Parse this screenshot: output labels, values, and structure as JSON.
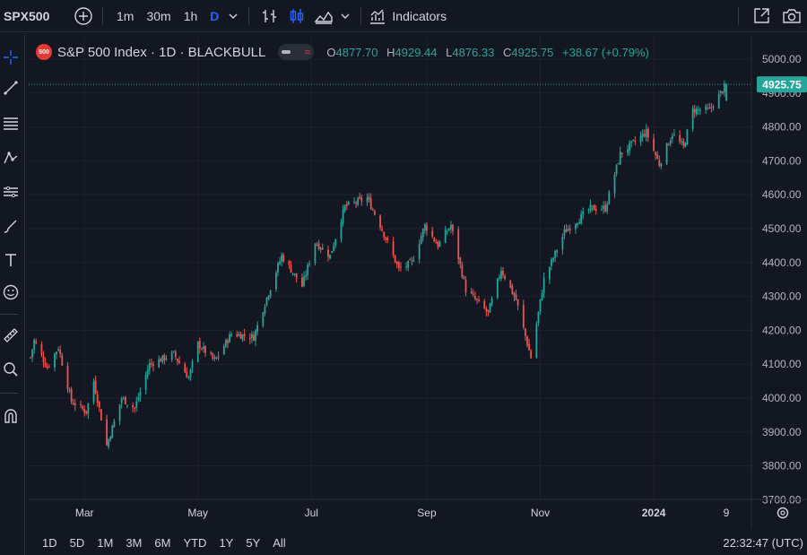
{
  "topbar": {
    "symbol": "SPX500",
    "intervals": [
      "1m",
      "30m",
      "1h",
      "D"
    ],
    "active_interval": "D",
    "indicators_label": "Indicators"
  },
  "legend": {
    "badge": "500",
    "title": "S&P 500 Index · 1D · BLACKBULL",
    "ohlc": [
      {
        "k": "O",
        "v": "4877.70"
      },
      {
        "k": "H",
        "v": "4929.44"
      },
      {
        "k": "L",
        "v": "4876.33"
      },
      {
        "k": "C",
        "v": "4925.75"
      }
    ],
    "change": "+38.67 (+0.79%)"
  },
  "bottom": {
    "ranges": [
      "1D",
      "5D",
      "1M",
      "3M",
      "6M",
      "YTD",
      "1Y",
      "5Y",
      "All"
    ],
    "clock": "22:32:47 (UTC)"
  },
  "colors": {
    "up": "#26a69a",
    "down": "#ef5350",
    "background": "#131722",
    "grid": "#1e222d",
    "accent": "#2962ff"
  },
  "chart_data": {
    "type": "candlestick",
    "title": "S&P 500 Index · 1D · BLACKBULL",
    "ylim": [
      3700,
      5050
    ],
    "y_ticks": [
      5000,
      4900,
      4800,
      4700,
      4600,
      4500,
      4400,
      4300,
      4200,
      4100,
      4000,
      3900,
      3800,
      3700
    ],
    "y_tick_labels": [
      "5000.00",
      "4900.00",
      "4800.00",
      "4700.00",
      "4600.00",
      "4500.00",
      "4400.00",
      "4300.00",
      "4200.00",
      "4100.00",
      "4000.00",
      "3900.00",
      "3800.00",
      "3700.00"
    ],
    "x_tick_labels": [
      "Mar",
      "May",
      "Jul",
      "Sep",
      "Nov",
      "2024",
      "9"
    ],
    "x_tick_dates": [
      "2023-03-01",
      "2023-05-01",
      "2023-07-01",
      "2023-09-01",
      "2023-11-01",
      "2024-01-01",
      "2024-02-09"
    ],
    "last_price": "4925.75",
    "last_value": 4925.75,
    "grid": true,
    "anchors": [
      [
        "2023-01-31",
        4120
      ],
      [
        "2023-02-02",
        4170
      ],
      [
        "2023-02-09",
        4090
      ],
      [
        "2023-02-15",
        4150
      ],
      [
        "2023-02-22",
        3990
      ],
      [
        "2023-03-02",
        3960
      ],
      [
        "2023-03-06",
        4050
      ],
      [
        "2023-03-13",
        3860
      ],
      [
        "2023-03-21",
        4000
      ],
      [
        "2023-03-28",
        3970
      ],
      [
        "2023-04-05",
        4100
      ],
      [
        "2023-04-18",
        4130
      ],
      [
        "2023-04-26",
        4060
      ],
      [
        "2023-05-01",
        4160
      ],
      [
        "2023-05-10",
        4110
      ],
      [
        "2023-05-19",
        4190
      ],
      [
        "2023-05-31",
        4180
      ],
      [
        "2023-06-06",
        4280
      ],
      [
        "2023-06-15",
        4420
      ],
      [
        "2023-06-26",
        4330
      ],
      [
        "2023-07-03",
        4460
      ],
      [
        "2023-07-11",
        4420
      ],
      [
        "2023-07-19",
        4565
      ],
      [
        "2023-07-31",
        4590
      ],
      [
        "2023-08-07",
        4510
      ],
      [
        "2023-08-17",
        4380
      ],
      [
        "2023-08-24",
        4400
      ],
      [
        "2023-08-31",
        4510
      ],
      [
        "2023-09-07",
        4450
      ],
      [
        "2023-09-14",
        4510
      ],
      [
        "2023-09-22",
        4320
      ],
      [
        "2023-10-04",
        4250
      ],
      [
        "2023-10-11",
        4380
      ],
      [
        "2023-10-19",
        4290
      ],
      [
        "2023-10-26",
        4140
      ],
      [
        "2023-10-27",
        4120
      ],
      [
        "2023-11-03",
        4350
      ],
      [
        "2023-11-14",
        4490
      ],
      [
        "2023-11-28",
        4560
      ],
      [
        "2023-12-06",
        4560
      ],
      [
        "2023-12-14",
        4720
      ],
      [
        "2023-12-28",
        4785
      ],
      [
        "2024-01-04",
        4690
      ],
      [
        "2024-01-11",
        4780
      ],
      [
        "2024-01-17",
        4740
      ],
      [
        "2024-01-22",
        4850
      ],
      [
        "2024-01-31",
        4850
      ],
      [
        "2024-02-09",
        4925.75
      ]
    ]
  }
}
